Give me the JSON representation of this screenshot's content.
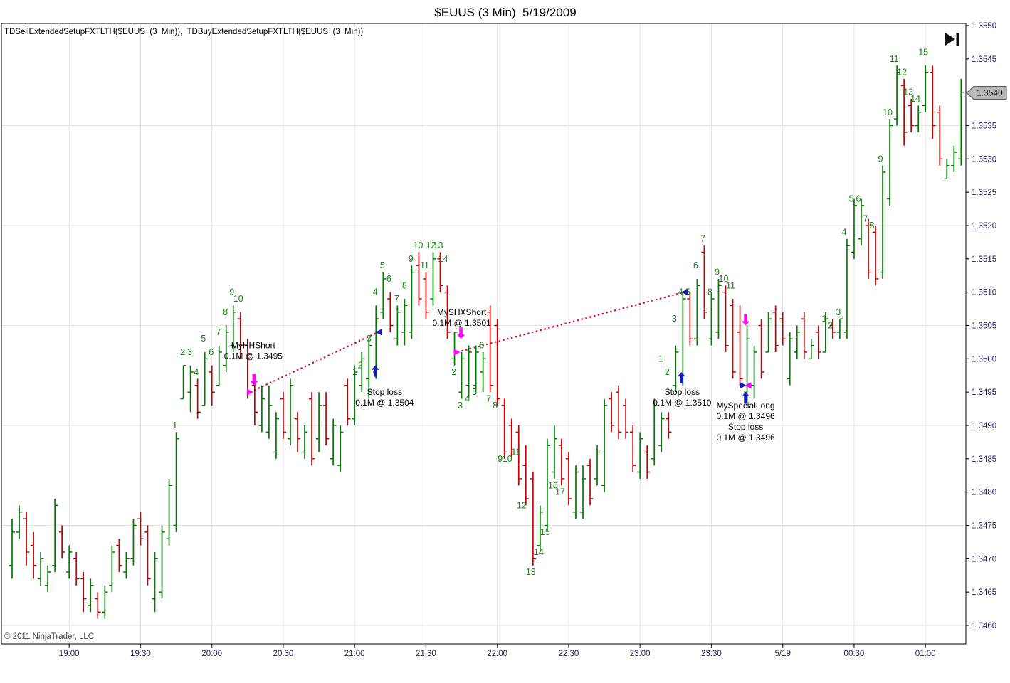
{
  "window": {
    "title": "$EUUS (3 Min)  5/19/2009",
    "indicator_label": "TDSellExtendedSetupFXTLTH($EUUS  (3  Min)),  TDBuyExtendedSetupFXTLTH($EUUS  (3  Min))",
    "copyright": "© 2011 NinjaTrader, LLC",
    "price_marker_value": "1.3540"
  },
  "colors": {
    "up_bar": "#007a00",
    "down_bar": "#c40000",
    "count_label": "#1b7e1b",
    "trade_line": "#cc1144",
    "entry_arrow_magenta": "#ff00ff",
    "stop_arrow_blue": "#1717b8",
    "exit_marker_blue": "#1717b8",
    "axis_text": "#1c1c50",
    "grid": "#e4e4e4",
    "border": "#000000",
    "marker_fill": "#b9b9b9",
    "marker_border": "#4d4d4d",
    "annotation_text": "#000000",
    "copyright_text": "#3c3c3c"
  },
  "chart_data": {
    "type": "bar",
    "title": "$EUUS (3 Min)  5/19/2009",
    "ylabel": "",
    "xlabel": "",
    "grid": true,
    "legend_position": "none",
    "y_axis": {
      "min": 1.346,
      "max": 1.355,
      "label_step": 0.0005,
      "grid_prices": [
        1.3535,
        1.352,
        1.3505,
        1.349,
        1.3475,
        1.346
      ]
    },
    "y_labels": [
      "1.3550",
      "1.3545",
      "1.3540",
      "1.3535",
      "1.3530",
      "1.3525",
      "1.3520",
      "1.3515",
      "1.3510",
      "1.3505",
      "1.3500",
      "1.3495",
      "1.3490",
      "1.3485",
      "1.3480",
      "1.3475",
      "1.3470",
      "1.3465",
      "1.3460"
    ],
    "x_ticks": {
      "labels": [
        "19:00",
        "19:30",
        "20:00",
        "20:30",
        "21:00",
        "21:30",
        "22:00",
        "22:30",
        "23:00",
        "23:30",
        "5/19",
        "00:30",
        "01:00"
      ],
      "first_bar_index": 8,
      "bar_step": 10
    },
    "bars_format": [
      "open",
      "high",
      "low",
      "close"
    ],
    "bars": [
      [
        1.3469,
        1.3476,
        1.3467,
        1.3474
      ],
      [
        1.3474,
        1.3478,
        1.3473,
        1.3477
      ],
      [
        1.3476,
        1.3477,
        1.3469,
        1.3471
      ],
      [
        1.3472,
        1.3474,
        1.3467,
        1.3469
      ],
      [
        1.3467,
        1.3471,
        1.3466,
        1.347
      ],
      [
        1.3466,
        1.3469,
        1.3465,
        1.3468
      ],
      [
        1.3469,
        1.3479,
        1.3468,
        1.3478
      ],
      [
        1.3474,
        1.3475,
        1.347,
        1.3471
      ],
      [
        1.3468,
        1.3472,
        1.3467,
        1.3471
      ],
      [
        1.347,
        1.3471,
        1.3466,
        1.3467
      ],
      [
        1.3467,
        1.3468,
        1.3462,
        1.3464
      ],
      [
        1.3463,
        1.3467,
        1.3462,
        1.3466
      ],
      [
        1.3464,
        1.3465,
        1.3461,
        1.3462
      ],
      [
        1.3462,
        1.3466,
        1.3461,
        1.3465
      ],
      [
        1.3466,
        1.3472,
        1.3465,
        1.3471
      ],
      [
        1.3472,
        1.3473,
        1.3468,
        1.3469
      ],
      [
        1.3468,
        1.3471,
        1.3467,
        1.347
      ],
      [
        1.347,
        1.3476,
        1.3469,
        1.3475
      ],
      [
        1.3476,
        1.3477,
        1.3472,
        1.3473
      ],
      [
        1.3474,
        1.3475,
        1.3466,
        1.3467
      ],
      [
        1.3464,
        1.3471,
        1.3462,
        1.347
      ],
      [
        1.3465,
        1.3475,
        1.3464,
        1.3474
      ],
      [
        1.3473,
        1.3482,
        1.3472,
        1.3481
      ],
      [
        1.3475,
        1.3489,
        1.3474,
        1.3488
      ],
      [
        1.3494,
        1.3499,
        1.3494,
        1.3499
      ],
      [
        1.3495,
        1.3499,
        1.3492,
        1.3498
      ],
      [
        1.3496,
        1.3497,
        1.3491,
        1.3492
      ],
      [
        1.3493,
        1.3501,
        1.3493,
        1.35
      ],
      [
        1.3498,
        1.3499,
        1.3493,
        1.3495
      ],
      [
        1.3496,
        1.3502,
        1.3496,
        1.3501
      ],
      [
        1.3499,
        1.3505,
        1.3498,
        1.3504
      ],
      [
        1.3502,
        1.3508,
        1.3501,
        1.3507
      ],
      [
        1.3506,
        1.3507,
        1.35,
        1.3502
      ],
      [
        1.3502,
        1.3503,
        1.3494,
        1.3495
      ],
      [
        1.3496,
        1.3497,
        1.349,
        1.3492
      ],
      [
        1.349,
        1.3496,
        1.3489,
        1.3494
      ],
      [
        1.3489,
        1.3496,
        1.3488,
        1.3493
      ],
      [
        1.3486,
        1.3492,
        1.3485,
        1.3491
      ],
      [
        1.3494,
        1.3495,
        1.3488,
        1.3489
      ],
      [
        1.3488,
        1.3497,
        1.3487,
        1.3496
      ],
      [
        1.3491,
        1.3492,
        1.3486,
        1.3488
      ],
      [
        1.3486,
        1.349,
        1.3485,
        1.3489
      ],
      [
        1.3494,
        1.3495,
        1.3484,
        1.3485
      ],
      [
        1.3488,
        1.3495,
        1.3486,
        1.3493
      ],
      [
        1.3493,
        1.3495,
        1.3487,
        1.3488
      ],
      [
        1.3485,
        1.3491,
        1.3484,
        1.349
      ],
      [
        1.3484,
        1.349,
        1.3483,
        1.3489
      ],
      [
        1.3496,
        1.3497,
        1.349,
        1.3491
      ],
      [
        1.3491,
        1.3499,
        1.349,
        1.3498
      ],
      [
        1.3496,
        1.3501,
        1.3495,
        1.35
      ],
      [
        1.3497,
        1.3503,
        1.3494,
        1.3502
      ],
      [
        1.3498,
        1.3508,
        1.3497,
        1.3506
      ],
      [
        1.3507,
        1.3513,
        1.3506,
        1.3512
      ],
      [
        1.3509,
        1.351,
        1.3504,
        1.3505
      ],
      [
        1.3503,
        1.3508,
        1.3502,
        1.3507
      ],
      [
        1.3504,
        1.3509,
        1.3502,
        1.3508
      ],
      [
        1.3504,
        1.3514,
        1.3503,
        1.3513
      ],
      [
        1.3514,
        1.3516,
        1.3508,
        1.3509
      ],
      [
        1.3512,
        1.3513,
        1.3506,
        1.3507
      ],
      [
        1.3509,
        1.3516,
        1.3508,
        1.3515
      ],
      [
        1.3515,
        1.3516,
        1.351,
        1.3511
      ],
      [
        1.351,
        1.3511,
        1.3503,
        1.3504
      ],
      [
        1.35,
        1.3504,
        1.3499,
        1.3504
      ],
      [
        1.3495,
        1.3501,
        1.3494,
        1.35
      ],
      [
        1.3496,
        1.3502,
        1.3494,
        1.3501
      ],
      [
        1.3496,
        1.3502,
        1.3495,
        1.3501
      ],
      [
        1.3498,
        1.3501,
        1.3495,
        1.35
      ],
      [
        1.3507,
        1.3508,
        1.3495,
        1.3496
      ],
      [
        1.3505,
        1.3506,
        1.3493,
        1.3494
      ],
      [
        1.3493,
        1.3494,
        1.3485,
        1.3486
      ],
      [
        1.349,
        1.3491,
        1.3485,
        1.3486
      ],
      [
        1.3489,
        1.349,
        1.3481,
        1.3482
      ],
      [
        1.3484,
        1.3487,
        1.3478,
        1.3479
      ],
      [
        1.3482,
        1.3483,
        1.3469,
        1.347
      ],
      [
        1.3472,
        1.3478,
        1.3471,
        1.3477
      ],
      [
        1.3475,
        1.3488,
        1.3474,
        1.3487
      ],
      [
        1.3483,
        1.349,
        1.3482,
        1.3488
      ],
      [
        1.3487,
        1.3488,
        1.3481,
        1.3482
      ],
      [
        1.3485,
        1.3486,
        1.3478,
        1.3479
      ],
      [
        1.3477,
        1.3484,
        1.3476,
        1.3483
      ],
      [
        1.3477,
        1.3484,
        1.3476,
        1.3482
      ],
      [
        1.3484,
        1.3485,
        1.3478,
        1.3479
      ],
      [
        1.3482,
        1.3487,
        1.3481,
        1.3486
      ],
      [
        1.3481,
        1.3494,
        1.348,
        1.3493
      ],
      [
        1.3494,
        1.3495,
        1.3489,
        1.349
      ],
      [
        1.3495,
        1.3496,
        1.3488,
        1.3489
      ],
      [
        1.3493,
        1.3494,
        1.3488,
        1.3489
      ],
      [
        1.3489,
        1.349,
        1.3483,
        1.3484
      ],
      [
        1.3483,
        1.3489,
        1.3482,
        1.3488
      ],
      [
        1.3486,
        1.3487,
        1.3482,
        1.3483
      ],
      [
        1.3485,
        1.3494,
        1.3484,
        1.3493
      ],
      [
        1.3487,
        1.3492,
        1.3486,
        1.3491
      ],
      [
        1.3491,
        1.3492,
        1.3488,
        1.3489
      ],
      [
        1.3496,
        1.3502,
        1.3495,
        1.3501
      ],
      [
        1.3497,
        1.351,
        1.3496,
        1.3509
      ],
      [
        1.3509,
        1.351,
        1.3502,
        1.3503
      ],
      [
        1.3503,
        1.3512,
        1.3502,
        1.3511
      ],
      [
        1.3516,
        1.3517,
        1.3506,
        1.3507
      ],
      [
        1.3503,
        1.351,
        1.3502,
        1.3509
      ],
      [
        1.3504,
        1.3512,
        1.3503,
        1.3511
      ],
      [
        1.351,
        1.3511,
        1.3501,
        1.3502
      ],
      [
        1.3508,
        1.3509,
        1.3497,
        1.3498
      ],
      [
        1.3504,
        1.3508,
        1.3496,
        1.3497
      ],
      [
        1.3495,
        1.3505,
        1.3493,
        1.3503
      ],
      [
        1.3496,
        1.3502,
        1.3494,
        1.3501
      ],
      [
        1.3505,
        1.3506,
        1.3497,
        1.3498
      ],
      [
        1.3501,
        1.3507,
        1.3501,
        1.3506
      ],
      [
        1.3507,
        1.3508,
        1.3501,
        1.3502
      ],
      [
        1.3506,
        1.3507,
        1.3502,
        1.3503
      ],
      [
        1.3497,
        1.3504,
        1.3496,
        1.3503
      ],
      [
        1.3501,
        1.3505,
        1.35,
        1.3504
      ],
      [
        1.3506,
        1.3507,
        1.35,
        1.3501
      ],
      [
        1.35,
        1.3503,
        1.35,
        1.3502
      ],
      [
        1.3504,
        1.3505,
        1.35,
        1.3501
      ],
      [
        1.3501,
        1.3507,
        1.3501,
        1.3506
      ],
      [
        1.3505,
        1.3506,
        1.3503,
        1.3504
      ],
      [
        1.3504,
        1.3506,
        1.3503,
        1.3506
      ],
      [
        1.3504,
        1.3518,
        1.3503,
        1.3517
      ],
      [
        1.3516,
        1.3524,
        1.3515,
        1.3523
      ],
      [
        1.3518,
        1.3524,
        1.3517,
        1.3523
      ],
      [
        1.352,
        1.3521,
        1.3512,
        1.3513
      ],
      [
        1.3519,
        1.352,
        1.3511,
        1.3512
      ],
      [
        1.3513,
        1.3529,
        1.3512,
        1.3528
      ],
      [
        1.3524,
        1.3536,
        1.3523,
        1.3535
      ],
      [
        1.3536,
        1.3544,
        1.3535,
        1.3543
      ],
      [
        1.3541,
        1.3542,
        1.3532,
        1.3534
      ],
      [
        1.3538,
        1.3539,
        1.3534,
        1.3535
      ],
      [
        1.3535,
        1.3538,
        1.3534,
        1.3537
      ],
      [
        1.3538,
        1.3544,
        1.3537,
        1.3543
      ],
      [
        1.3543,
        1.3544,
        1.3533,
        1.3535
      ],
      [
        1.3537,
        1.3538,
        1.3529,
        1.353
      ],
      [
        1.3527,
        1.353,
        1.3527,
        1.3529
      ],
      [
        1.3529,
        1.3532,
        1.3528,
        1.3531
      ],
      [
        1.353,
        1.3542,
        1.3529,
        1.354
      ]
    ],
    "setup_counts": [
      [
        22.8,
        1.349,
        "1"
      ],
      [
        23.9,
        1.3501,
        "2"
      ],
      [
        24.9,
        1.3501,
        "3"
      ],
      [
        25.8,
        1.3498,
        "4"
      ],
      [
        26.8,
        1.3503,
        "5"
      ],
      [
        27.9,
        1.3501,
        "6"
      ],
      [
        28.9,
        1.3504,
        "7"
      ],
      [
        29.9,
        1.3507,
        "8"
      ],
      [
        30.8,
        1.351,
        "9"
      ],
      [
        31.7,
        1.3509,
        "10"
      ],
      [
        48.0,
        1.3498,
        "1"
      ],
      [
        48.8,
        1.3499,
        "2"
      ],
      [
        50.0,
        1.3503,
        "3"
      ],
      [
        50.9,
        1.351,
        "4"
      ],
      [
        51.9,
        1.3514,
        "5"
      ],
      [
        52.8,
        1.3512,
        "6"
      ],
      [
        53.9,
        1.3509,
        "7"
      ],
      [
        55.0,
        1.3511,
        "8"
      ],
      [
        55.9,
        1.3515,
        "9"
      ],
      [
        56.9,
        1.3517,
        "10"
      ],
      [
        57.8,
        1.3514,
        "11"
      ],
      [
        58.7,
        1.3517,
        "12"
      ],
      [
        59.7,
        1.3517,
        "13"
      ],
      [
        60.4,
        1.3515,
        "14"
      ],
      [
        61.9,
        1.3498,
        "2"
      ],
      [
        62.8,
        1.3493,
        "3"
      ],
      [
        63.8,
        1.3494,
        "4"
      ],
      [
        64.8,
        1.3495,
        "5"
      ],
      [
        65.8,
        1.3502,
        "6"
      ],
      [
        66.8,
        1.3494,
        "7"
      ],
      [
        67.7,
        1.3493,
        "8"
      ],
      [
        68.4,
        1.3485,
        "9"
      ],
      [
        69.4,
        1.3485,
        "10"
      ],
      [
        70.6,
        1.3486,
        "11"
      ],
      [
        71.4,
        1.3478,
        "12"
      ],
      [
        72.7,
        1.3468,
        "13"
      ],
      [
        73.8,
        1.3471,
        "14"
      ],
      [
        74.7,
        1.3474,
        "15"
      ],
      [
        75.8,
        1.3481,
        "16"
      ],
      [
        76.8,
        1.348,
        "17"
      ],
      [
        90.9,
        1.35,
        "1"
      ],
      [
        91.8,
        1.3498,
        "2"
      ],
      [
        92.8,
        1.3506,
        "3"
      ],
      [
        93.7,
        1.351,
        "4"
      ],
      [
        94.7,
        1.351,
        "5"
      ],
      [
        95.8,
        1.3514,
        "6"
      ],
      [
        96.8,
        1.3518,
        "7"
      ],
      [
        97.8,
        1.351,
        "8"
      ],
      [
        98.8,
        1.3513,
        "9"
      ],
      [
        99.7,
        1.3512,
        "10"
      ],
      [
        100.7,
        1.3511,
        "11"
      ],
      [
        113.8,
        1.3506,
        "1"
      ],
      [
        114.7,
        1.3505,
        "2"
      ],
      [
        115.8,
        1.3507,
        "3"
      ],
      [
        116.6,
        1.3519,
        "4"
      ],
      [
        117.6,
        1.3524,
        "5"
      ],
      [
        118.6,
        1.3524,
        "6"
      ],
      [
        119.6,
        1.3521,
        "7"
      ],
      [
        120.5,
        1.352,
        "8"
      ],
      [
        121.7,
        1.353,
        "9"
      ],
      [
        122.7,
        1.3537,
        "10"
      ],
      [
        123.6,
        1.3545,
        "11"
      ],
      [
        124.7,
        1.3543,
        "12"
      ],
      [
        125.6,
        1.354,
        "13"
      ],
      [
        126.6,
        1.3539,
        "14"
      ],
      [
        127.7,
        1.3546,
        "15"
      ]
    ],
    "trade_lines": [
      {
        "i1": 33.4,
        "p1": 1.3495,
        "i2": 51.3,
        "p2": 1.3504
      },
      {
        "i1": 62.4,
        "p1": 1.3501,
        "i2": 94.2,
        "p2": 1.351
      }
    ],
    "trade_markers": [
      {
        "i": 33.4,
        "p": 1.3495,
        "dir": "right",
        "color": "magenta"
      },
      {
        "i": 51.3,
        "p": 1.3504,
        "dir": "left",
        "color": "blue"
      },
      {
        "i": 62.4,
        "p": 1.3501,
        "dir": "right",
        "color": "magenta"
      },
      {
        "i": 94.2,
        "p": 1.351,
        "dir": "left",
        "color": "blue"
      },
      {
        "i": 102.5,
        "p": 1.3496,
        "dir": "right",
        "color": "blue"
      },
      {
        "i": 103.1,
        "p": 1.3496,
        "dir": "left",
        "color": "magenta"
      }
    ],
    "signal_arrows": [
      {
        "i": 33.9,
        "p": 1.3496,
        "dir": "down",
        "color": "magenta"
      },
      {
        "i": 50.9,
        "p": 1.3499,
        "dir": "up",
        "color": "blue"
      },
      {
        "i": 62.9,
        "p": 1.3503,
        "dir": "down",
        "color": "magenta"
      },
      {
        "i": 93.8,
        "p": 1.3498,
        "dir": "up",
        "color": "blue"
      },
      {
        "i": 102.8,
        "p": 1.3505,
        "dir": "down",
        "color": "magenta"
      },
      {
        "i": 102.8,
        "p": 1.3495,
        "dir": "up",
        "color": "blue"
      }
    ],
    "annotations": [
      {
        "i": 33.8,
        "p": 1.3502,
        "lines": [
          "MyHHShort",
          "0.1M @ 1.3495"
        ]
      },
      {
        "i": 52.2,
        "p": 1.3495,
        "lines": [
          "Stop loss",
          "0.1M @ 1.3504"
        ]
      },
      {
        "i": 63.0,
        "p": 1.3507,
        "lines": [
          "MySHXShort",
          "0.1M @ 1.3501"
        ]
      },
      {
        "i": 93.9,
        "p": 1.3495,
        "lines": [
          "Stop loss",
          "0.1M @ 1.3510"
        ]
      },
      {
        "i": 102.8,
        "p": 1.3493,
        "lines": [
          "MySpecialLong",
          "0.1M @ 1.3496",
          "Stop loss",
          "0.1M @ 1.3496"
        ]
      }
    ]
  }
}
